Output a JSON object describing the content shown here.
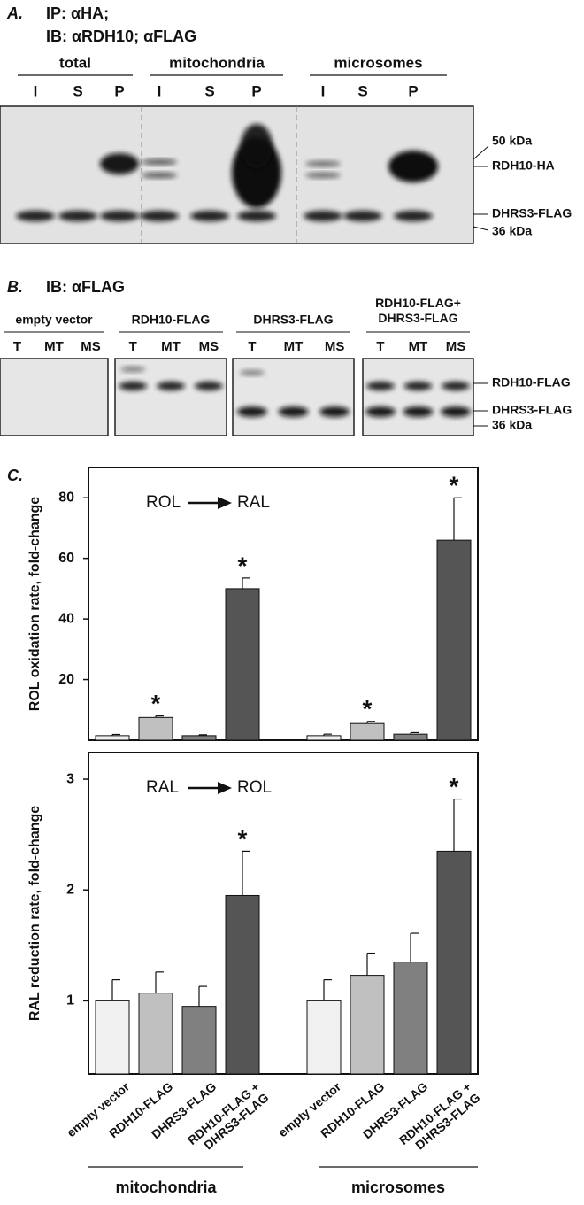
{
  "panel_a": {
    "label": "A.",
    "title_lines": [
      "IP: αHA;",
      "IB: αRDH10; αFLAG"
    ],
    "groups": [
      {
        "name": "total",
        "lanes": [
          "I",
          "S",
          "P"
        ]
      },
      {
        "name": "mitochondria",
        "lanes": [
          "I",
          "S",
          "P"
        ]
      },
      {
        "name": "microsomes",
        "lanes": [
          "I",
          "S",
          "P"
        ]
      }
    ],
    "markers": [
      "50 kDa",
      "RDH10-HA",
      "DHRS3-FLAG",
      "36 kDa"
    ]
  },
  "panel_b": {
    "label": "B.",
    "title": "IB: αFLAG",
    "groups": [
      {
        "name": "empty vector",
        "lanes": [
          "T",
          "MT",
          "MS"
        ]
      },
      {
        "name": "RDH10-FLAG",
        "lanes": [
          "T",
          "MT",
          "MS"
        ]
      },
      {
        "name": "DHRS3-FLAG",
        "lanes": [
          "T",
          "MT",
          "MS"
        ]
      },
      {
        "name": "RDH10-FLAG+\nDHRS3-FLAG",
        "lanes": [
          "T",
          "MT",
          "MS"
        ]
      }
    ],
    "markers": [
      "RDH10-FLAG",
      "DHRS3-FLAG",
      "36 kDa"
    ]
  },
  "panel_c": {
    "label": "C."
  },
  "chart_data": [
    {
      "type": "bar",
      "ylabel": "ROL oxidation rate, fold-change",
      "reaction": {
        "from": "ROL",
        "to": "RAL"
      },
      "values": [
        1.5,
        7.5,
        1.5,
        50,
        1.5,
        5.5,
        2,
        66
      ],
      "errors": [
        0.4,
        0.5,
        0.3,
        3.5,
        0.5,
        0.7,
        0.5,
        14
      ],
      "markers": [
        null,
        "*",
        null,
        "*",
        null,
        "*",
        null,
        "*"
      ],
      "colors": [
        "#f0f0f0",
        "#c0c0c0",
        "#808080",
        "#555555",
        "#f0f0f0",
        "#c0c0c0",
        "#808080",
        "#555555"
      ],
      "ylim": [
        0,
        90
      ],
      "yticks": [
        20,
        40,
        60,
        80
      ]
    },
    {
      "type": "bar",
      "ylabel": "RAL reduction rate, fold-change",
      "reaction": {
        "from": "RAL",
        "to": "ROL"
      },
      "categories": [
        "empty vector",
        "RDH10-FLAG",
        "DHRS3-FLAG",
        "RDH10-FLAG +\nDHRS3-FLAG",
        "empty vector",
        "RDH10-FLAG",
        "DHRS3-FLAG",
        "RDH10-FLAG +\nDHRS3-FLAG"
      ],
      "groups": [
        "mitochondria",
        "microsomes"
      ],
      "values": [
        1.0,
        1.07,
        0.95,
        1.95,
        1.0,
        1.23,
        1.35,
        2.35
      ],
      "errors": [
        0.19,
        0.19,
        0.18,
        0.4,
        0.19,
        0.2,
        0.26,
        0.47
      ],
      "markers": [
        null,
        null,
        null,
        "*",
        null,
        null,
        null,
        "*"
      ],
      "colors": [
        "#f0f0f0",
        "#c0c0c0",
        "#808080",
        "#555555",
        "#f0f0f0",
        "#c0c0c0",
        "#808080",
        "#555555"
      ],
      "ylim": [
        0.34,
        3.24
      ],
      "yticks": [
        1,
        2,
        3
      ]
    }
  ]
}
